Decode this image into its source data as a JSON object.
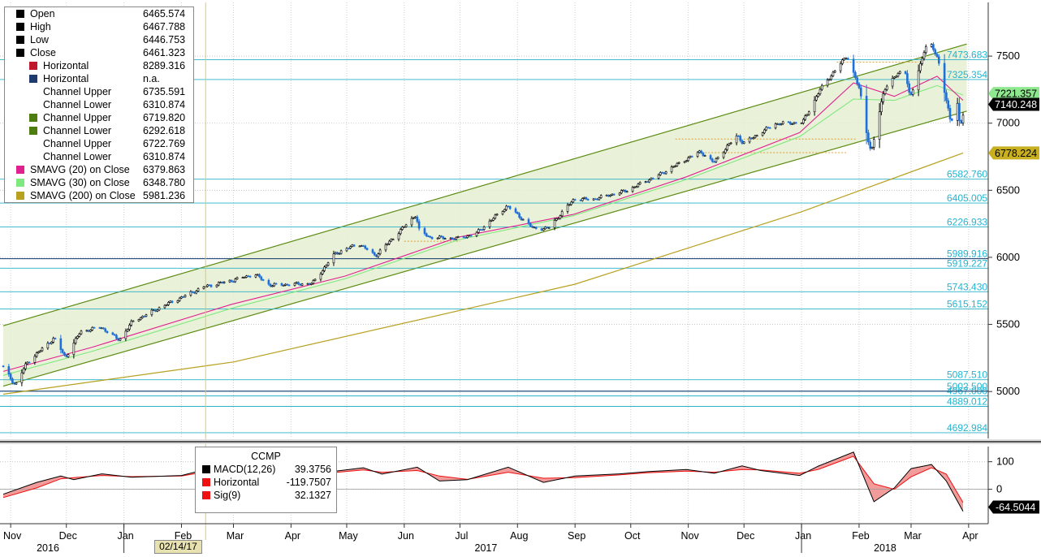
{
  "chart_data": [
    {
      "type": "candlestick",
      "ticker": "CCMP",
      "x_axis": {
        "month_labels": [
          "Nov",
          "Dec",
          "Jan",
          "Feb",
          "Mar",
          "Apr",
          "May",
          "Jun",
          "Jul",
          "Aug",
          "Sep",
          "Oct",
          "Nov",
          "Dec",
          "Jan",
          "Feb",
          "Mar",
          "Apr"
        ],
        "year_labels": [
          "2016",
          "2017",
          "2018"
        ],
        "range": [
          "2016-10-28",
          "2018-03-29"
        ]
      },
      "y_axis": {
        "ticks": [
          5000,
          5500,
          6000,
          6500,
          7000,
          7500
        ],
        "range": [
          4650,
          7900
        ],
        "position": "right"
      },
      "legend": [
        {
          "name": "Open",
          "value": "6465.574",
          "color": "#000000"
        },
        {
          "name": "High",
          "value": "6467.788",
          "color": "#000000"
        },
        {
          "name": "Low",
          "value": "6446.753",
          "color": "#000000"
        },
        {
          "name": "Close",
          "value": "6461.323",
          "color": "#000000"
        },
        {
          "name": "Horizontal",
          "value": "8289.316",
          "color": "#c0182c",
          "indent": true
        },
        {
          "name": "Horizontal",
          "value": "n.a.",
          "color": "#1f3a6e",
          "indent": true
        },
        {
          "name": "Channel Upper",
          "value": "6735.591",
          "color": "#ffffff",
          "indent": true
        },
        {
          "name": "Channel Lower",
          "value": "6310.874",
          "color": "#ffffff",
          "indent": true
        },
        {
          "name": "Channel Upper",
          "value": "6719.820",
          "color": "#4d7c0f",
          "indent": true
        },
        {
          "name": "Channel Lower",
          "value": "6292.618",
          "color": "#4d7c0f",
          "indent": true
        },
        {
          "name": "Channel Upper",
          "value": "6722.769",
          "color": "#ffffff",
          "indent": true
        },
        {
          "name": "Channel Lower",
          "value": "6310.874",
          "color": "#ffffff",
          "indent": true
        },
        {
          "name": "SMAVG (20) on Close",
          "value": "6379.863",
          "color": "#e0208e"
        },
        {
          "name": "SMAVG (30) on Close",
          "value": "6348.780",
          "color": "#7fe87f"
        },
        {
          "name": "SMAVG (200) on Close",
          "value": "5981.236",
          "color": "#b8a020"
        }
      ],
      "price_path": [
        [
          "2016-10-28",
          5190
        ],
        [
          "2016-11-04",
          5046
        ],
        [
          "2016-11-10",
          5210
        ],
        [
          "2016-11-15",
          5275
        ],
        [
          "2016-11-25",
          5398
        ],
        [
          "2016-12-01",
          5252
        ],
        [
          "2016-12-09",
          5445
        ],
        [
          "2016-12-20",
          5480
        ],
        [
          "2016-12-30",
          5383
        ],
        [
          "2017-01-06",
          5521
        ],
        [
          "2017-01-26",
          5660
        ],
        [
          "2017-02-14",
          5782
        ],
        [
          "2017-02-28",
          5825
        ],
        [
          "2017-03-13",
          5875
        ],
        [
          "2017-03-21",
          5793
        ],
        [
          "2017-04-13",
          5805
        ],
        [
          "2017-04-25",
          6025
        ],
        [
          "2017-05-08",
          6103
        ],
        [
          "2017-05-17",
          6011
        ],
        [
          "2017-06-08",
          6321
        ],
        [
          "2017-06-09",
          6208
        ],
        [
          "2017-06-15",
          6150
        ],
        [
          "2017-06-30",
          6140
        ],
        [
          "2017-07-10",
          6176
        ],
        [
          "2017-07-27",
          6383
        ],
        [
          "2017-08-10",
          6216
        ],
        [
          "2017-08-18",
          6216
        ],
        [
          "2017-09-01",
          6435
        ],
        [
          "2017-09-11",
          6432
        ],
        [
          "2017-09-29",
          6496
        ],
        [
          "2017-10-18",
          6624
        ],
        [
          "2017-10-31",
          6728
        ],
        [
          "2017-11-08",
          6789
        ],
        [
          "2017-11-15",
          6706
        ],
        [
          "2017-11-28",
          6912
        ],
        [
          "2017-12-01",
          6848
        ],
        [
          "2017-12-18",
          6994
        ],
        [
          "2018-01-02",
          7006
        ],
        [
          "2018-01-12",
          7261
        ],
        [
          "2018-01-26",
          7505
        ],
        [
          "2018-02-02",
          7240
        ],
        [
          "2018-02-05",
          6968
        ],
        [
          "2018-02-08",
          6777
        ],
        [
          "2018-02-15",
          7256
        ],
        [
          "2018-02-26",
          7421
        ],
        [
          "2018-03-01",
          7180
        ],
        [
          "2018-03-09",
          7560
        ],
        [
          "2018-03-12",
          7588
        ],
        [
          "2018-03-16",
          7482
        ],
        [
          "2018-03-23",
          6992
        ],
        [
          "2018-03-26",
          7220
        ],
        [
          "2018-03-28",
          6949
        ],
        [
          "2018-03-29",
          7063
        ]
      ],
      "sma20_path": [
        [
          "2016-10-28",
          5150
        ],
        [
          "2016-12-15",
          5330
        ],
        [
          "2017-02-28",
          5650
        ],
        [
          "2017-04-30",
          5860
        ],
        [
          "2017-06-30",
          6150
        ],
        [
          "2017-08-31",
          6320
        ],
        [
          "2017-10-31",
          6600
        ],
        [
          "2017-12-31",
          6930
        ],
        [
          "2018-01-29",
          7300
        ],
        [
          "2018-02-20",
          7200
        ],
        [
          "2018-03-15",
          7350
        ],
        [
          "2018-03-29",
          7170
        ]
      ],
      "sma30_path": [
        [
          "2016-10-28",
          5120
        ],
        [
          "2016-12-15",
          5300
        ],
        [
          "2017-02-28",
          5620
        ],
        [
          "2017-04-30",
          5840
        ],
        [
          "2017-06-30",
          6130
        ],
        [
          "2017-08-31",
          6310
        ],
        [
          "2017-10-31",
          6580
        ],
        [
          "2017-12-31",
          6900
        ],
        [
          "2018-01-29",
          7180
        ],
        [
          "2018-02-20",
          7170
        ],
        [
          "2018-03-15",
          7280
        ],
        [
          "2018-03-29",
          7210
        ]
      ],
      "sma200_path": [
        [
          "2016-10-28",
          4980
        ],
        [
          "2017-03-01",
          5220
        ],
        [
          "2017-09-01",
          5800
        ],
        [
          "2018-01-01",
          6340
        ],
        [
          "2018-03-29",
          6778
        ]
      ],
      "channel_band": {
        "upper": [
          [
            "2016-10-28",
            5490
          ],
          [
            "2018-03-31",
            7590
          ]
        ],
        "lower": [
          [
            "2016-10-28",
            5040
          ],
          [
            "2018-03-31",
            7090
          ]
        ]
      },
      "dashed_lines": [
        {
          "from": "2017-06-01",
          "to": "2017-07-01",
          "level": 6120
        },
        {
          "from": "2017-10-25",
          "to": "2018-01-31",
          "level": 6882
        },
        {
          "from": "2017-11-10",
          "to": "2018-01-25",
          "level": 6780
        },
        {
          "from": "2018-01-20",
          "to": "2018-03-05",
          "level": 7455
        }
      ],
      "horizontal_lines": [
        {
          "value": 7473.683,
          "label": "7473.683"
        },
        {
          "value": 7325.354,
          "label": "7325.354"
        },
        {
          "value": 6582.76,
          "label": "6582.760"
        },
        {
          "value": 6405.005,
          "label": "6405.005"
        },
        {
          "value": 6226.933,
          "label": "6226.933"
        },
        {
          "value": 5989.916,
          "label": "5989.916"
        },
        {
          "value": 5919.227,
          "label": "5919.227"
        },
        {
          "value": 5743.43,
          "label": "5743.430"
        },
        {
          "value": 5615.152,
          "label": "5615.152"
        },
        {
          "value": 5087.51,
          "label": "5087.510"
        },
        {
          "value": 5002.5,
          "label": "5002.500"
        },
        {
          "value": 4967.0,
          "label": "4967.000"
        },
        {
          "value": 4889.012,
          "label": "4889.012"
        },
        {
          "value": 4692.984,
          "label": "4692.984"
        }
      ],
      "right_tags": [
        {
          "value": 7221.357,
          "label": "7221.357",
          "bg": "#8fe88f",
          "fg": "#000000"
        },
        {
          "value": 7140.248,
          "label": "7140.248",
          "bg": "#000000",
          "fg": "#ffffff"
        },
        {
          "value": 6778.224,
          "label": "6778.224",
          "bg": "#c8b020",
          "fg": "#000000"
        }
      ],
      "vertical_marker": {
        "date": "2017-02-14",
        "label": "02/14/17"
      }
    },
    {
      "type": "line",
      "title": "CCMP",
      "y_axis": {
        "ticks": [
          100,
          0
        ],
        "range": [
          -125,
          155
        ]
      },
      "legend": [
        {
          "name": "MACD(12,26)",
          "value": "39.3756",
          "color": "#000000"
        },
        {
          "name": "Horizontal",
          "value": "-119.7507",
          "color": "#ee1111"
        },
        {
          "name": "Sig(9)",
          "value": "32.1327",
          "color": "#ee1111"
        }
      ],
      "macd_path": [
        [
          "2016-10-28",
          -18
        ],
        [
          "2016-11-15",
          25
        ],
        [
          "2016-11-28",
          48
        ],
        [
          "2016-12-05",
          35
        ],
        [
          "2016-12-20",
          56
        ],
        [
          "2017-01-05",
          44
        ],
        [
          "2017-02-01",
          50
        ],
        [
          "2017-02-20",
          82
        ],
        [
          "2017-03-01",
          84
        ],
        [
          "2017-03-20",
          42
        ],
        [
          "2017-04-05",
          54
        ],
        [
          "2017-04-20",
          62
        ],
        [
          "2017-05-10",
          78
        ],
        [
          "2017-05-20",
          55
        ],
        [
          "2017-06-08",
          80
        ],
        [
          "2017-06-20",
          30
        ],
        [
          "2017-07-05",
          35
        ],
        [
          "2017-07-27",
          80
        ],
        [
          "2017-08-15",
          25
        ],
        [
          "2017-09-01",
          48
        ],
        [
          "2017-09-25",
          56
        ],
        [
          "2017-10-10",
          64
        ],
        [
          "2017-10-31",
          72
        ],
        [
          "2017-11-15",
          58
        ],
        [
          "2017-11-30",
          85
        ],
        [
          "2017-12-10",
          68
        ],
        [
          "2017-12-31",
          50
        ],
        [
          "2018-01-10",
          84
        ],
        [
          "2018-01-29",
          135
        ],
        [
          "2018-02-09",
          -45
        ],
        [
          "2018-02-20",
          5
        ],
        [
          "2018-03-01",
          75
        ],
        [
          "2018-03-12",
          90
        ],
        [
          "2018-03-20",
          30
        ],
        [
          "2018-03-29",
          -80
        ]
      ],
      "signal_path": [
        [
          "2016-10-28",
          -30
        ],
        [
          "2016-11-15",
          5
        ],
        [
          "2016-11-28",
          38
        ],
        [
          "2016-12-05",
          42
        ],
        [
          "2016-12-20",
          50
        ],
        [
          "2017-01-05",
          46
        ],
        [
          "2017-02-01",
          48
        ],
        [
          "2017-02-20",
          70
        ],
        [
          "2017-03-01",
          76
        ],
        [
          "2017-03-20",
          56
        ],
        [
          "2017-04-05",
          52
        ],
        [
          "2017-04-20",
          58
        ],
        [
          "2017-05-10",
          70
        ],
        [
          "2017-05-20",
          62
        ],
        [
          "2017-06-08",
          68
        ],
        [
          "2017-06-20",
          48
        ],
        [
          "2017-07-05",
          36
        ],
        [
          "2017-07-27",
          62
        ],
        [
          "2017-08-15",
          40
        ],
        [
          "2017-09-01",
          42
        ],
        [
          "2017-09-25",
          52
        ],
        [
          "2017-10-10",
          60
        ],
        [
          "2017-10-31",
          66
        ],
        [
          "2017-11-15",
          62
        ],
        [
          "2017-11-30",
          72
        ],
        [
          "2017-12-10",
          70
        ],
        [
          "2017-12-31",
          58
        ],
        [
          "2018-01-10",
          72
        ],
        [
          "2018-01-29",
          120
        ],
        [
          "2018-02-09",
          20
        ],
        [
          "2018-02-20",
          0
        ],
        [
          "2018-03-01",
          45
        ],
        [
          "2018-03-12",
          78
        ],
        [
          "2018-03-20",
          55
        ],
        [
          "2018-03-29",
          -48
        ]
      ],
      "zero_line": 0,
      "right_tag": {
        "label": "-64.5044",
        "value": -64.5044
      }
    }
  ]
}
